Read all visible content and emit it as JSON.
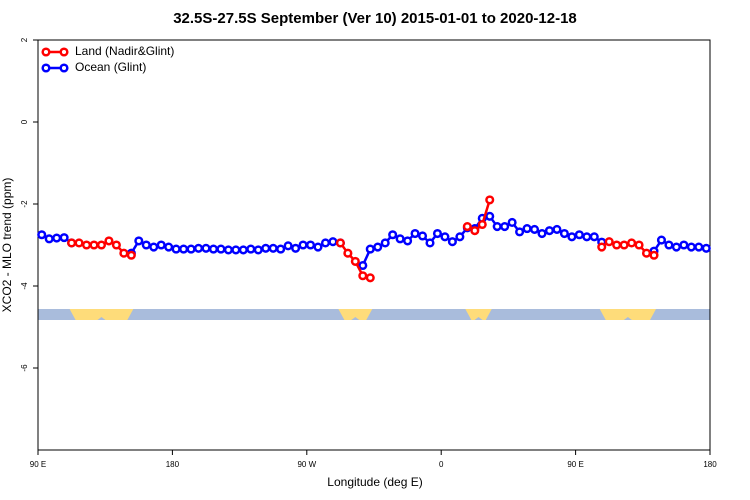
{
  "chart_data": {
    "type": "line",
    "title": "32.5S-27.5S September (Ver 10)   2015-01-01 to 2020-12-18",
    "x_label": "Longitude (deg E)",
    "y_label": "XCO2 - MLO trend (ppm)",
    "x": [
      92.5,
      97.5,
      102.5,
      107.5,
      112.5,
      117.5,
      122.5,
      127.5,
      132.5,
      137.5,
      142.5,
      147.5,
      152.5,
      157.5,
      162.5,
      167.5,
      172.5,
      177.5,
      182.5,
      187.5,
      192.5,
      197.5,
      202.5,
      207.5,
      212.5,
      217.5,
      222.5,
      227.5,
      232.5,
      237.5,
      242.5,
      247.5,
      252.5,
      257.5,
      262.5,
      267.5,
      272.5,
      277.5,
      282.5,
      287.5,
      292.5,
      297.5,
      302.5,
      307.5,
      312.5,
      317.5,
      322.5,
      327.5,
      332.5,
      337.5,
      342.5,
      347.5,
      352.5,
      357.5,
      362.5,
      367.5,
      372.5,
      377.5,
      382.5,
      387.5,
      392.5,
      397.5,
      402.5,
      407.5,
      412.5,
      417.5,
      422.5,
      427.5,
      432.5,
      437.5,
      442.5,
      447.5,
      452.5,
      457.5,
      462.5,
      467.5,
      472.5,
      477.5,
      482.5,
      487.5,
      492.5,
      497.5,
      502.5,
      507.5,
      512.5,
      517.5,
      522.5,
      527.5,
      532.5,
      537.5
    ],
    "series": [
      {
        "name": "Land (Nadir&Glint)",
        "color": "#ff0000",
        "values": [
          null,
          null,
          null,
          null,
          -2.95,
          -2.95,
          -3.0,
          -3.0,
          -3.0,
          -2.9,
          -3.0,
          -3.2,
          -3.25,
          null,
          null,
          null,
          null,
          null,
          null,
          null,
          null,
          null,
          null,
          null,
          null,
          null,
          null,
          null,
          null,
          null,
          null,
          null,
          null,
          null,
          null,
          null,
          null,
          null,
          null,
          null,
          -2.95,
          -3.2,
          -3.4,
          -3.75,
          -3.8,
          null,
          null,
          null,
          null,
          null,
          null,
          null,
          null,
          null,
          null,
          null,
          null,
          -2.55,
          -2.65,
          -2.5,
          -1.9,
          null,
          null,
          null,
          null,
          null,
          null,
          null,
          null,
          null,
          null,
          null,
          null,
          null,
          null,
          -3.05,
          -2.92,
          -3.0,
          -3.0,
          -2.95,
          -3.0,
          -3.2,
          -3.25,
          null,
          null,
          null,
          null,
          null,
          null,
          null
        ]
      },
      {
        "name": "Ocean (Glint)",
        "color": "#0000ff",
        "values": [
          -2.75,
          -2.85,
          -2.83,
          -2.82,
          -2.95,
          null,
          null,
          null,
          null,
          null,
          null,
          null,
          -3.2,
          -2.9,
          -3.0,
          -3.05,
          -3.0,
          -3.05,
          -3.1,
          -3.1,
          -3.1,
          -3.08,
          -3.08,
          -3.1,
          -3.1,
          -3.12,
          -3.12,
          -3.12,
          -3.1,
          -3.12,
          -3.08,
          -3.08,
          -3.1,
          -3.02,
          -3.08,
          -3.0,
          -3.0,
          -3.05,
          -2.95,
          -2.92,
          -2.95,
          null,
          null,
          -3.5,
          -3.1,
          -3.05,
          -2.95,
          -2.75,
          -2.85,
          -2.9,
          -2.72,
          -2.78,
          -2.95,
          -2.72,
          -2.8,
          -2.92,
          -2.8,
          -2.58,
          -2.6,
          -2.35,
          -2.3,
          -2.55,
          -2.55,
          -2.45,
          -2.68,
          -2.6,
          -2.62,
          -2.72,
          -2.65,
          -2.62,
          -2.72,
          -2.8,
          -2.75,
          -2.8,
          -2.8,
          -2.93,
          null,
          null,
          null,
          null,
          null,
          null,
          -3.15,
          -2.88,
          -3.0,
          -3.05,
          -3.0,
          -3.05,
          -3.05,
          -3.08
        ]
      }
    ],
    "xlim": [
      90,
      540
    ],
    "xticks": [
      {
        "value": 90,
        "label": "90 E"
      },
      180,
      {
        "value": 270,
        "label": "90 W"
      },
      {
        "value": 360,
        "label": "0"
      },
      {
        "value": 450,
        "label": "90 E"
      },
      {
        "value": 540,
        "label": "180"
      }
    ],
    "ylim": [
      -8,
      2
    ],
    "yticks": [
      -6,
      -4,
      -2,
      0,
      2
    ],
    "legend": "top-left"
  }
}
